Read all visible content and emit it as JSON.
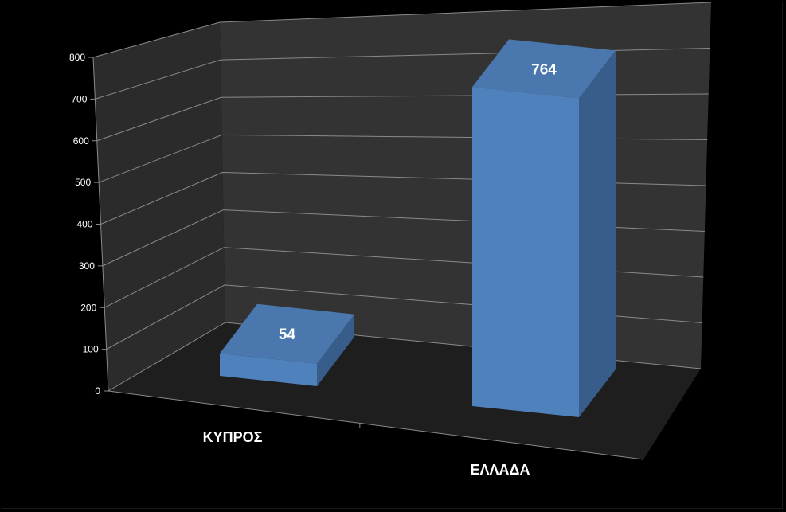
{
  "chart_data": {
    "type": "bar",
    "style": "3d-column",
    "categories": [
      "ΚΥΠΡΟΣ",
      "ΕΛΛΑΔΑ"
    ],
    "values": [
      54,
      764
    ],
    "data_labels": [
      "54",
      "764"
    ],
    "yticks": [
      "0",
      "100",
      "200",
      "300",
      "400",
      "500",
      "600",
      "700",
      "800"
    ],
    "ylim": [
      0,
      800
    ],
    "grid": true,
    "legend": "none",
    "colors": {
      "background": "#000000",
      "back_wall": "#333333",
      "side_wall": "#2b2b2b",
      "floor": "#1e1e1e",
      "gridline": "#8a8a8a",
      "bar_front": "#4f81bd",
      "bar_top": "#4a78ae",
      "bar_side": "#385d8a",
      "label_text": "#ffffff",
      "tick_text": "#ffffff"
    }
  }
}
